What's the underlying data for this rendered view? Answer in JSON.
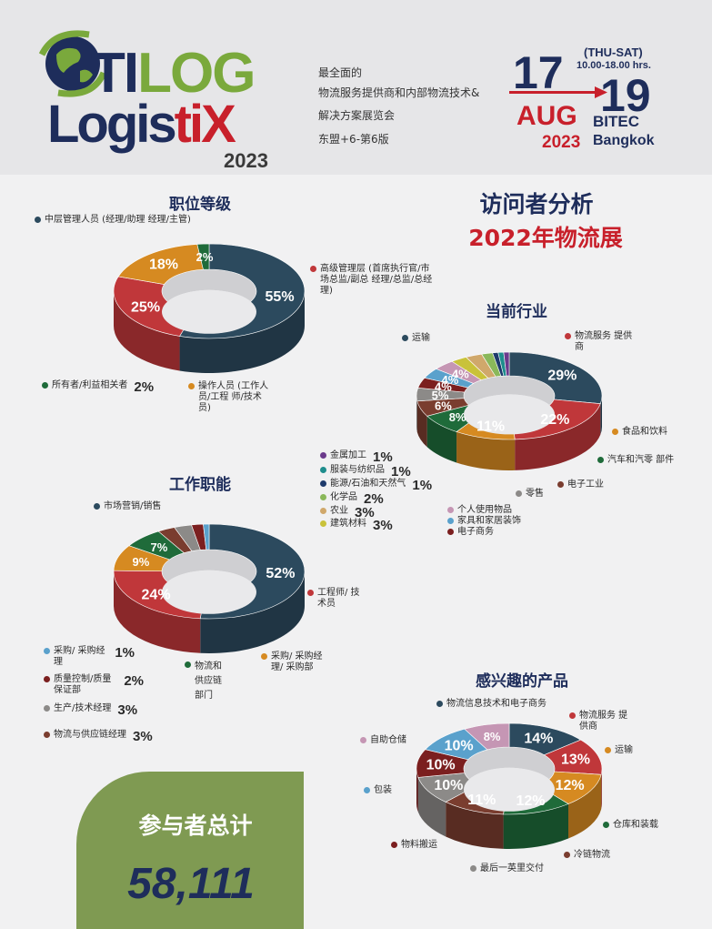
{
  "header": {
    "logo_line1_a": "TI",
    "logo_line1_b": "LOG",
    "logo_line2_a": "Logis",
    "logo_line2_b": "tiX",
    "logo_year": "2023",
    "tagline": [
      "最全面的",
      "物流服务提供商和内部物流技术&",
      "解决方案展览会",
      "东盟+6-第6版"
    ],
    "date_start": "17",
    "date_end": "19",
    "days": "(THU-SAT)",
    "hours": "10.00-18.00 hrs.",
    "month": "AUG",
    "venue": "BITEC",
    "year": "2023",
    "city": "Bangkok"
  },
  "title": "访问者分析",
  "subtitle": "2022年物流展",
  "total": {
    "label": "参与者总计",
    "value": "58,111"
  },
  "colors": {
    "navy": "#2c4a5e",
    "red": "#c0373a",
    "orange": "#d68a21",
    "green": "#1f6b3a",
    "brown": "#7a3d2f",
    "gray": "#8c8a88",
    "dark_red": "#7b1f1f",
    "blue": "#5aa1cc",
    "pink": "#c596b4",
    "teal": "#1f8d8d",
    "purple": "#6b3a8c",
    "lightgreen": "#8ab85a",
    "tan": "#d0a86b",
    "yellow": "#c9c23a",
    "brand_navy": "#1e2d5b",
    "brand_green": "#7aa93c",
    "brand_red": "#c8202b"
  },
  "chart_data": [
    {
      "type": "pie",
      "title": "职位等级",
      "slices": [
        {
          "label": "中层管理人员 (经理/助理 经理/主管)",
          "value": 55,
          "color": "#2c4a5e"
        },
        {
          "label": "高级管理层 (首席执行官/市场总监/副总 经理/总监/总经理)",
          "value": 25,
          "color": "#c0373a"
        },
        {
          "label": "操作人员 (工作人员/工程 师/技术员)",
          "value": 18,
          "color": "#d68a21"
        },
        {
          "label": "所有者/利益相关者",
          "value": 2,
          "color": "#1f6b3a"
        }
      ]
    },
    {
      "type": "pie",
      "title": "当前行业",
      "slices": [
        {
          "label": "运输",
          "value": 29,
          "color": "#2c4a5e"
        },
        {
          "label": "物流服务 提供商",
          "value": 22,
          "color": "#c0373a"
        },
        {
          "label": "食品和饮料",
          "value": 11,
          "color": "#d68a21"
        },
        {
          "label": "汽车和汽零 部件",
          "value": 8,
          "color": "#1f6b3a"
        },
        {
          "label": "电子工业",
          "value": 6,
          "color": "#7a3d2f"
        },
        {
          "label": "零售",
          "value": 5,
          "color": "#8c8a88"
        },
        {
          "label": "电子商务",
          "value": 4,
          "color": "#7b1f1f"
        },
        {
          "label": "家具和家居装饰",
          "value": 4,
          "color": "#5aa1cc"
        },
        {
          "label": "个人使用物品",
          "value": 4,
          "color": "#c596b4"
        },
        {
          "label": "建筑材料",
          "value": 3,
          "color": "#c9c23a"
        },
        {
          "label": "农业",
          "value": 3,
          "color": "#d0a86b"
        },
        {
          "label": "化学品",
          "value": 2,
          "color": "#8ab85a"
        },
        {
          "label": "能源/石油和天然气",
          "value": 1,
          "color": "#1e3a6b"
        },
        {
          "label": "服装与纺织品",
          "value": 1,
          "color": "#1f8d8d"
        },
        {
          "label": "金属加工",
          "value": 1,
          "color": "#6b3a8c"
        }
      ]
    },
    {
      "type": "pie",
      "title": "工作职能",
      "slices": [
        {
          "label": "市场营销/销售",
          "value": 52,
          "color": "#2c4a5e"
        },
        {
          "label": "工程师/ 技术员",
          "value": 24,
          "color": "#c0373a"
        },
        {
          "label": "采购/ 采购经理/ 采购部",
          "value": 9,
          "color": "#d68a21"
        },
        {
          "label": "物流和 供应链 部门",
          "value": 7,
          "color": "#1f6b3a"
        },
        {
          "label": "物流与供应链经理",
          "value": 3,
          "color": "#7a3d2f"
        },
        {
          "label": "生产/技术经理",
          "value": 3,
          "color": "#8c8a88"
        },
        {
          "label": "质量控制/质量 保证部",
          "value": 2,
          "color": "#7b1f1f"
        },
        {
          "label": "采购/ 采购经理",
          "value": 1,
          "color": "#5aa1cc"
        }
      ]
    },
    {
      "type": "pie",
      "title": "感兴趣的产品",
      "slices": [
        {
          "label": "物流服务 提供商",
          "value": 13,
          "color": "#c0373a"
        },
        {
          "label": "运输",
          "value": 12,
          "color": "#d68a21"
        },
        {
          "label": "仓库和装载",
          "value": 12,
          "color": "#1f6b3a"
        },
        {
          "label": "冷链物流",
          "value": 11,
          "color": "#7a3d2f"
        },
        {
          "label": "最后一英里交付",
          "value": 10,
          "color": "#8c8a88"
        },
        {
          "label": "物料搬运",
          "value": 10,
          "color": "#7b1f1f"
        },
        {
          "label": "包装",
          "value": 10,
          "color": "#5aa1cc"
        },
        {
          "label": "自助仓储",
          "value": 8,
          "color": "#c596b4"
        },
        {
          "label": "物流信息技术和电子商务",
          "value": 14,
          "color": "#2c4a5e"
        }
      ]
    }
  ]
}
